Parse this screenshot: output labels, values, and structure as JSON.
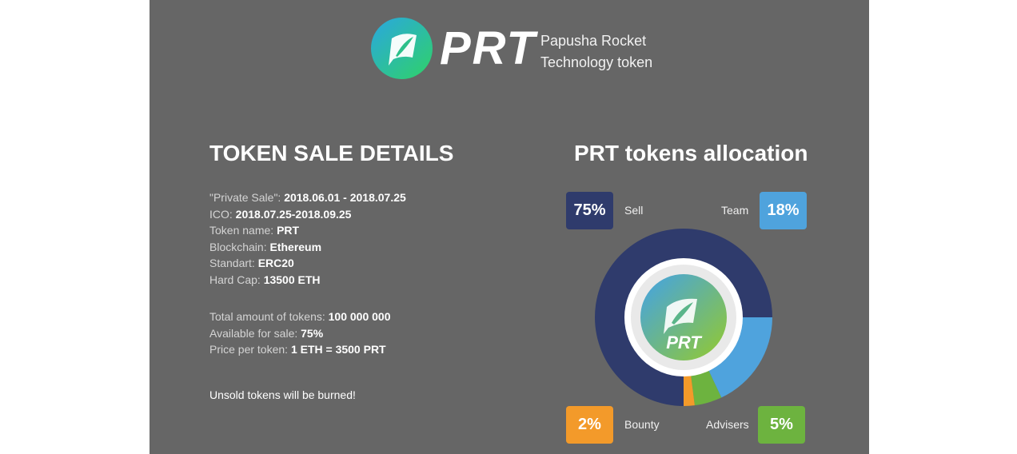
{
  "brand": {
    "name": "PRT",
    "tagline_line1": "Papusha Rocket",
    "tagline_line2": "Technology token",
    "logo_icon": "rocket-leaf-icon"
  },
  "sale": {
    "title": "TOKEN SALE DETAILS",
    "rows": [
      {
        "label": "\"Private Sale\": ",
        "value": "2018.06.01 - 2018.07.25"
      },
      {
        "label": "ICO: ",
        "value": "2018.07.25-2018.09.25"
      },
      {
        "label": "Token name: ",
        "value": "PRT"
      },
      {
        "label": "Blockchain: ",
        "value": "Ethereum"
      },
      {
        "label": "Standart: ",
        "value": "ERC20"
      },
      {
        "label": "Hard Cap: ",
        "value": "13500 ETH"
      }
    ],
    "rows2": [
      {
        "label": "Total amount of tokens: ",
        "value": "100 000 000"
      },
      {
        "label": "Available for sale: ",
        "value": "75%"
      },
      {
        "label": "Price per token: ",
        "value": "1 ETH = 3500 PRT"
      }
    ],
    "note": "Unsold tokens will be burned!"
  },
  "allocation": {
    "title": "PRT tokens allocation",
    "center_label": "PRT"
  },
  "chart_data": {
    "type": "pie",
    "title": "PRT tokens allocation",
    "categories": [
      "Sell",
      "Team",
      "Advisers",
      "Bounty"
    ],
    "values": [
      75,
      18,
      5,
      2
    ],
    "value_labels": [
      "75%",
      "18%",
      "5%",
      "2%"
    ],
    "colors": [
      "#2f3b6c",
      "#4fa3dd",
      "#6db33f",
      "#f39a2a"
    ],
    "legend": "corners"
  },
  "colors": {
    "panel_bg": "#666666",
    "logo_gradient_start": "#2aa7e0",
    "logo_gradient_end": "#2fd06d",
    "center_gradient_start": "#4aa6d6",
    "center_gradient_end": "#8cc63f"
  }
}
